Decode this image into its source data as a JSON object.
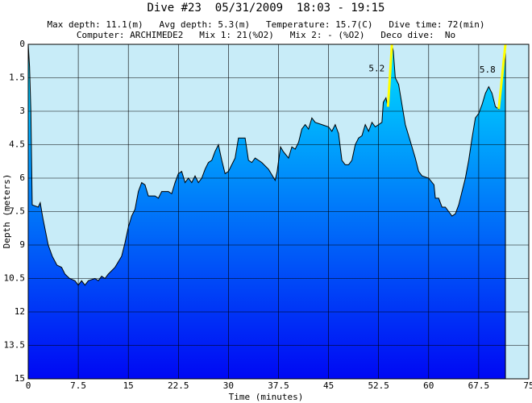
{
  "chart_data": {
    "type": "area",
    "title": "Dive #23  05/31/2009  18:03 - 19:15",
    "subtitle": [
      "Max depth: 11.1(m)   Avg depth: 5.3(m)   Temperature: 15.7(C)   Dive time: 72(min)",
      "Computer: ARCHIMEDE2   Mix 1: 21(%O2)   Mix 2: - (%O2)   Deco dive:  No"
    ],
    "x_label": "Time (minutes)",
    "y_label": "Depth (meters)",
    "xlim": [
      0,
      75
    ],
    "xticks": [
      0,
      7.5,
      15,
      22.5,
      30,
      37.5,
      45,
      52.5,
      60,
      67.5,
      75
    ],
    "ylim": [
      0,
      15
    ],
    "yticks": [
      0,
      1.5,
      3,
      4.5,
      6,
      7.5,
      9,
      10.5,
      12,
      13.5,
      15
    ],
    "y_inverted": true,
    "grid": true,
    "background_color": "#c8ecf8",
    "fill_colors": [
      "#00e4ff",
      "#0008f4"
    ],
    "x": [
      0,
      0.2,
      0.4,
      0.6,
      1.5,
      1.8,
      2.2,
      3,
      3.6,
      4.3,
      5,
      5.5,
      6.2,
      7,
      7.5,
      8,
      8.5,
      9,
      10,
      10.5,
      11,
      11.5,
      12,
      13,
      14,
      14.5,
      15,
      15.5,
      16,
      16.5,
      17,
      17.5,
      18,
      19,
      19.5,
      20,
      21,
      21.5,
      22,
      22.5,
      23,
      23.5,
      24,
      24.5,
      25,
      25.5,
      26,
      26.5,
      27,
      27.5,
      28,
      28.5,
      29,
      29.5,
      30,
      30.5,
      31,
      31.5,
      32.5,
      33,
      33.5,
      34,
      35,
      36,
      37,
      37.3,
      37.8,
      38.2,
      39,
      39.5,
      40,
      40.5,
      41,
      41.5,
      42,
      42.5,
      43,
      44,
      45,
      45.5,
      46,
      46.5,
      47,
      47.5,
      48,
      48.5,
      49,
      49.5,
      50,
      50.5,
      51,
      51.5,
      52,
      53,
      53.2,
      53.6,
      53.9,
      54.5,
      54.7,
      55,
      55.5,
      56,
      56.5,
      57.5,
      58,
      58.5,
      59,
      60,
      60.8,
      61,
      61.5,
      62,
      62.5,
      63,
      63.5,
      64,
      64.5,
      65,
      65.5,
      66,
      66.5,
      67,
      67.5,
      68,
      68.5,
      69,
      69.5,
      70,
      70.5,
      71.5
    ],
    "values": [
      0,
      1.0,
      3.0,
      7.2,
      7.3,
      7.1,
      7.8,
      9.0,
      9.5,
      9.9,
      10.0,
      10.3,
      10.5,
      10.6,
      10.8,
      10.6,
      10.8,
      10.6,
      10.5,
      10.6,
      10.4,
      10.5,
      10.3,
      10.0,
      9.5,
      8.9,
      8.2,
      7.7,
      7.4,
      6.6,
      6.2,
      6.3,
      6.8,
      6.8,
      6.9,
      6.6,
      6.6,
      6.7,
      6.2,
      5.8,
      5.7,
      6.2,
      6.0,
      6.2,
      5.9,
      6.2,
      6.0,
      5.6,
      5.3,
      5.2,
      4.8,
      4.5,
      5.2,
      5.8,
      5.7,
      5.4,
      5.1,
      4.2,
      4.2,
      5.2,
      5.3,
      5.1,
      5.3,
      5.6,
      6.1,
      5.7,
      4.6,
      4.8,
      5.1,
      4.6,
      4.7,
      4.4,
      3.8,
      3.6,
      3.8,
      3.3,
      3.5,
      3.6,
      3.7,
      3.9,
      3.6,
      4.0,
      5.2,
      5.4,
      5.4,
      5.2,
      4.5,
      4.2,
      4.1,
      3.6,
      3.9,
      3.5,
      3.7,
      3.5,
      2.6,
      2.4,
      2.8,
      0,
      0.3,
      1.5,
      1.8,
      2.7,
      3.6,
      4.6,
      5.1,
      5.7,
      5.9,
      6.0,
      6.3,
      6.9,
      6.9,
      7.3,
      7.3,
      7.5,
      7.7,
      7.6,
      7.2,
      6.6,
      6.0,
      5.2,
      4.2,
      3.3,
      3.1,
      2.7,
      2.2,
      1.9,
      2.2,
      2.8,
      2.9,
      0
    ],
    "annotations": [
      {
        "text": "5.2",
        "color": "#ffff00",
        "x": [
          53.9,
          54.5
        ],
        "y": [
          2.8,
          0
        ]
      },
      {
        "text": "5.8",
        "color": "#ffff00",
        "x": [
          70.5,
          71.5
        ],
        "y": [
          2.9,
          0
        ]
      }
    ]
  }
}
